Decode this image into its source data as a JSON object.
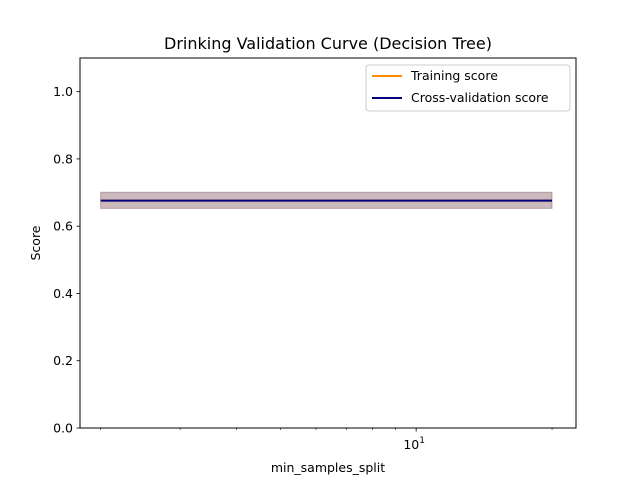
{
  "chart_data": {
    "type": "line",
    "title": "Drinking Validation Curve (Decision Tree)",
    "xlabel": "min_samples_split",
    "ylabel": "Score",
    "xscale": "log",
    "xlim": [
      1.8,
      22.6
    ],
    "ylim": [
      0.0,
      1.1
    ],
    "yticks": [
      0.0,
      0.2,
      0.4,
      0.6,
      0.8,
      1.0
    ],
    "ytick_labels": [
      "0.0",
      "0.2",
      "0.4",
      "0.6",
      "0.8",
      "1.0"
    ],
    "xtick_major": [
      {
        "value": 10,
        "base": "10",
        "exp": "1"
      }
    ],
    "xtick_minor": [
      2,
      3,
      4,
      5,
      6,
      7,
      8,
      9,
      20
    ],
    "grid": false,
    "legend_position": "top-right",
    "x": [
      2,
      20
    ],
    "series": [
      {
        "name": "Training score",
        "color": "#ff8c00",
        "values": [
          0.676,
          0.676
        ],
        "band_lower": [
          0.653,
          0.653
        ],
        "band_upper": [
          0.701,
          0.701
        ]
      },
      {
        "name": "Cross-validation score",
        "color": "#000080",
        "values": [
          0.676,
          0.676
        ],
        "band_lower": [
          0.653,
          0.653
        ],
        "band_upper": [
          0.701,
          0.701
        ]
      }
    ]
  }
}
